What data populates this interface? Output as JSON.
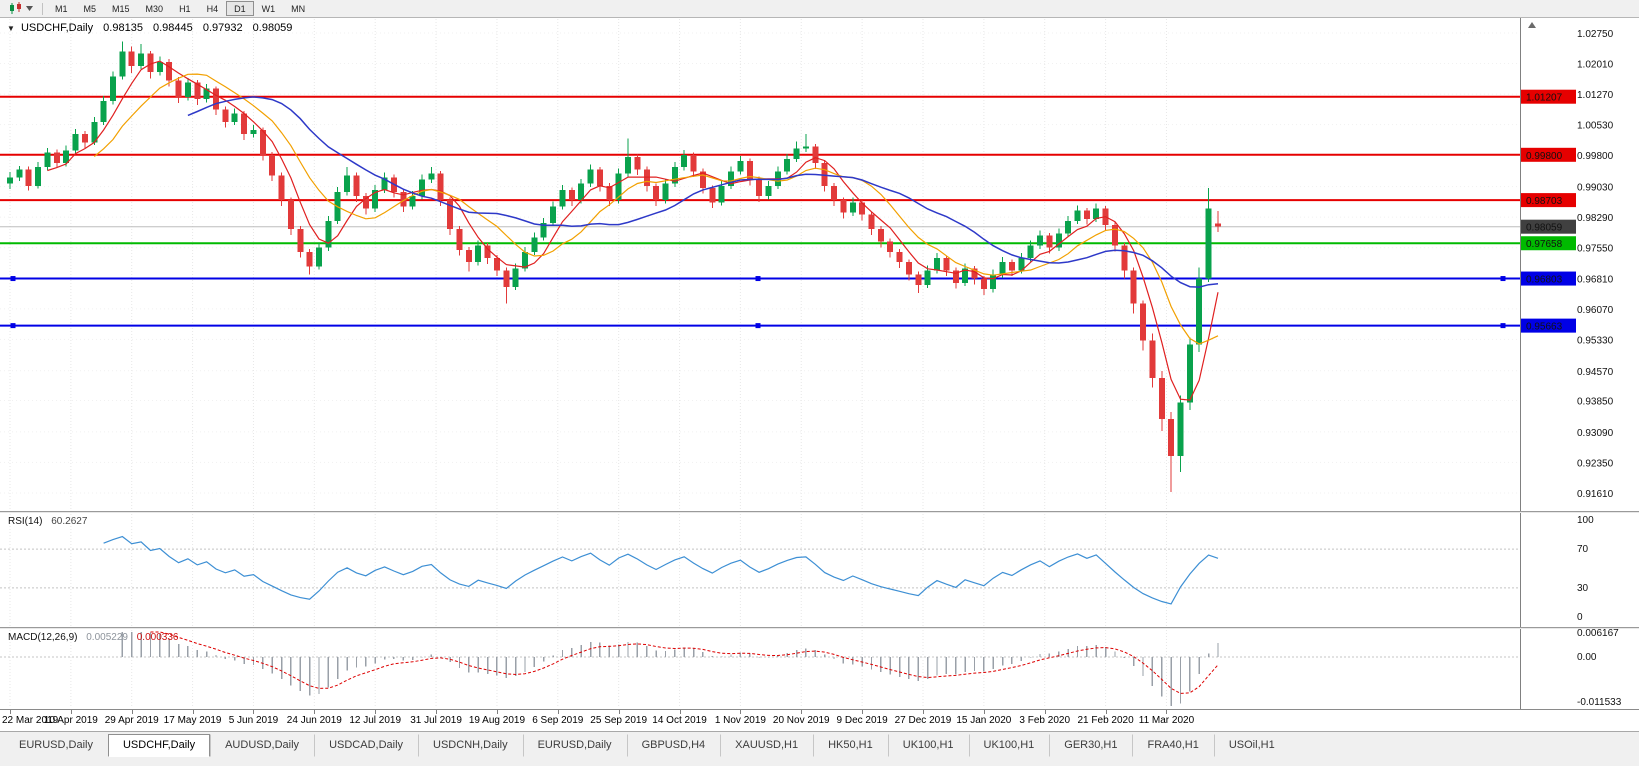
{
  "toolbar": {
    "timeframes": [
      {
        "label": "M1",
        "active": false
      },
      {
        "label": "M5",
        "active": false
      },
      {
        "label": "M15",
        "active": false
      },
      {
        "label": "M30",
        "active": false
      },
      {
        "label": "H1",
        "active": false
      },
      {
        "label": "H4",
        "active": false
      },
      {
        "label": "D1",
        "active": true
      },
      {
        "label": "W1",
        "active": false
      },
      {
        "label": "MN",
        "active": false
      }
    ]
  },
  "colors": {
    "candle_up": "#09a24c",
    "candle_down": "#e23a3a",
    "hline_red": "#e60000",
    "hline_green": "#00ba00",
    "hline_blue": "#0000e6",
    "bid_line": "#bdbdbd",
    "bid_flag": "#404040",
    "ma_fast": "#e02020",
    "ma_mid": "#f2a000",
    "ma_slow": "#2e39c8",
    "rsi_line": "#3d8fd4",
    "macd_hist": "#9aa0a8",
    "macd_signal": "#dd0000",
    "grid": "#e7e7e7"
  },
  "chart_data": {
    "type": "candlestick",
    "symbol": "USDCHF",
    "period": "Daily",
    "title": "USDCHF,Daily",
    "ohlc_display": {
      "open": "0.98135",
      "high": "0.98445",
      "low": "0.97932",
      "close": "0.98059"
    },
    "bid_price": 0.98059,
    "bid_label": "0.98059",
    "y_top": 1.0311,
    "y_bottom": 0.9118,
    "y_axis_ticks": [
      "1.02750",
      "1.02010",
      "1.01270",
      "1.00530",
      "0.99800",
      "0.99030",
      "0.98290",
      "0.97550",
      "0.96810",
      "0.96070",
      "0.95330",
      "0.94570",
      "0.93850",
      "0.93090",
      "0.92350",
      "0.91610"
    ],
    "x_axis_labels": [
      "22 Mar 2019",
      "10 Apr 2019",
      "29 Apr 2019",
      "17 May 2019",
      "5 Jun 2019",
      "24 Jun 2019",
      "12 Jul 2019",
      "31 Jul 2019",
      "19 Aug 2019",
      "6 Sep 2019",
      "25 Sep 2019",
      "14 Oct 2019",
      "1 Nov 2019",
      "20 Nov 2019",
      "9 Dec 2019",
      "27 Dec 2019",
      "15 Jan 2020",
      "3 Feb 2020",
      "21 Feb 2020",
      "11 Mar 2020"
    ],
    "candles_per_x_label": 6.5,
    "horizontal_lines": [
      {
        "price": 1.01207,
        "label": "1.01207",
        "color": "red",
        "role": "resistance",
        "selected": false
      },
      {
        "price": 0.998,
        "label": "0.99800",
        "color": "red",
        "role": "resistance",
        "selected": false
      },
      {
        "price": 0.98703,
        "label": "0.98703",
        "color": "red",
        "role": "resistance",
        "selected": false
      },
      {
        "price": 0.97658,
        "label": "0.97658",
        "color": "green",
        "role": "support",
        "selected": false
      },
      {
        "price": 0.96803,
        "label": "0.96803",
        "color": "blue",
        "role": "support",
        "selected": true
      },
      {
        "price": 0.95663,
        "label": "0.95663",
        "color": "blue",
        "role": "support",
        "selected": true
      }
    ],
    "indicators": [
      {
        "name": "RSI(14)",
        "value_display": "60.2627",
        "axis_labels": [
          "100",
          "70",
          "30",
          "0"
        ],
        "levels": [
          70,
          30
        ]
      },
      {
        "name": "MACD(12,26,9)",
        "values_display": [
          "0.005229",
          "0.000336"
        ],
        "axis_labels": [
          "0.006167",
          "0.00",
          "-0.011533"
        ]
      }
    ],
    "candles": [
      [
        0.991,
        0.9938,
        0.9897,
        0.9925
      ],
      [
        0.9925,
        0.9953,
        0.9917,
        0.9945
      ],
      [
        0.9945,
        0.9952,
        0.9893,
        0.9905
      ],
      [
        0.9905,
        0.9962,
        0.9898,
        0.995
      ],
      [
        0.995,
        0.9996,
        0.9942,
        0.9985
      ],
      [
        0.9985,
        0.9993,
        0.9948,
        0.996
      ],
      [
        0.996,
        1.0002,
        0.9952,
        0.999
      ],
      [
        0.999,
        1.0042,
        0.9983,
        1.003
      ],
      [
        1.003,
        1.0038,
        0.9996,
        1.001
      ],
      [
        1.001,
        1.0072,
        1.0004,
        1.006
      ],
      [
        1.006,
        1.0122,
        1.0052,
        1.011
      ],
      [
        1.011,
        1.0182,
        1.0102,
        1.017
      ],
      [
        1.017,
        1.0255,
        1.0162,
        1.023
      ],
      [
        1.023,
        1.0242,
        1.0178,
        1.0195
      ],
      [
        1.0195,
        1.0248,
        1.0188,
        1.0225
      ],
      [
        1.0225,
        1.0232,
        1.0165,
        1.018
      ],
      [
        1.018,
        1.0218,
        1.0172,
        1.0205
      ],
      [
        1.0205,
        1.0212,
        1.0146,
        1.016
      ],
      [
        1.016,
        1.0168,
        1.0105,
        1.012
      ],
      [
        1.012,
        1.0166,
        1.0112,
        1.0155
      ],
      [
        1.0155,
        1.0161,
        1.0101,
        1.0115
      ],
      [
        1.0115,
        1.0152,
        1.0107,
        1.014
      ],
      [
        1.014,
        1.0146,
        1.0076,
        1.009
      ],
      [
        1.009,
        1.0097,
        1.0046,
        1.006
      ],
      [
        1.006,
        1.0092,
        1.0052,
        1.008
      ],
      [
        1.008,
        1.0086,
        1.0016,
        1.003
      ],
      [
        1.003,
        1.0052,
        1.0022,
        1.004
      ],
      [
        1.004,
        1.0046,
        0.9966,
        0.998
      ],
      [
        0.998,
        0.9987,
        0.9916,
        0.993
      ],
      [
        0.993,
        0.9937,
        0.9856,
        0.987
      ],
      [
        0.987,
        0.9877,
        0.9786,
        0.98
      ],
      [
        0.98,
        0.9807,
        0.9731,
        0.9745
      ],
      [
        0.9745,
        0.9752,
        0.969,
        0.971
      ],
      [
        0.971,
        0.9767,
        0.9702,
        0.9755
      ],
      [
        0.9755,
        0.9832,
        0.9747,
        0.982
      ],
      [
        0.982,
        0.9902,
        0.9812,
        0.989
      ],
      [
        0.989,
        0.995,
        0.9882,
        0.993
      ],
      [
        0.993,
        0.9937,
        0.9866,
        0.988
      ],
      [
        0.988,
        0.9887,
        0.9836,
        0.985
      ],
      [
        0.985,
        0.9907,
        0.9842,
        0.9895
      ],
      [
        0.9895,
        0.9937,
        0.9887,
        0.9925
      ],
      [
        0.9925,
        0.9932,
        0.9876,
        0.989
      ],
      [
        0.989,
        0.9897,
        0.9841,
        0.9855
      ],
      [
        0.9855,
        0.9892,
        0.9847,
        0.988
      ],
      [
        0.988,
        0.9932,
        0.9872,
        0.992
      ],
      [
        0.992,
        0.995,
        0.9912,
        0.9935
      ],
      [
        0.9935,
        0.9941,
        0.9856,
        0.987
      ],
      [
        0.987,
        0.9877,
        0.9786,
        0.98
      ],
      [
        0.98,
        0.9807,
        0.9736,
        0.975
      ],
      [
        0.975,
        0.9757,
        0.9697,
        0.972
      ],
      [
        0.972,
        0.9772,
        0.9712,
        0.976
      ],
      [
        0.976,
        0.9766,
        0.9716,
        0.973
      ],
      [
        0.973,
        0.9737,
        0.9686,
        0.97
      ],
      [
        0.97,
        0.9707,
        0.962,
        0.966
      ],
      [
        0.966,
        0.9717,
        0.9652,
        0.9705
      ],
      [
        0.9705,
        0.9757,
        0.9697,
        0.9745
      ],
      [
        0.9745,
        0.9792,
        0.9737,
        0.978
      ],
      [
        0.978,
        0.9827,
        0.9772,
        0.9815
      ],
      [
        0.9815,
        0.9867,
        0.9807,
        0.9855
      ],
      [
        0.9855,
        0.9907,
        0.9847,
        0.9895
      ],
      [
        0.9895,
        0.9901,
        0.9856,
        0.987
      ],
      [
        0.987,
        0.9922,
        0.9862,
        0.991
      ],
      [
        0.991,
        0.9957,
        0.9902,
        0.9945
      ],
      [
        0.9945,
        0.9951,
        0.9891,
        0.9905
      ],
      [
        0.9905,
        0.9912,
        0.9856,
        0.987
      ],
      [
        0.987,
        0.9947,
        0.9862,
        0.9935
      ],
      [
        0.9935,
        1.002,
        0.9927,
        0.9975
      ],
      [
        0.9975,
        0.9981,
        0.9931,
        0.9945
      ],
      [
        0.9945,
        0.9952,
        0.9891,
        0.9905
      ],
      [
        0.9905,
        0.9911,
        0.9856,
        0.987
      ],
      [
        0.987,
        0.9922,
        0.9862,
        0.991
      ],
      [
        0.991,
        0.9962,
        0.9902,
        0.995
      ],
      [
        0.995,
        0.9992,
        0.9942,
        0.998
      ],
      [
        0.998,
        0.9986,
        0.9926,
        0.994
      ],
      [
        0.994,
        0.9947,
        0.9886,
        0.99
      ],
      [
        0.99,
        0.9906,
        0.9851,
        0.9865
      ],
      [
        0.9865,
        0.9917,
        0.9857,
        0.9905
      ],
      [
        0.9905,
        0.9952,
        0.9897,
        0.994
      ],
      [
        0.994,
        0.9977,
        0.9932,
        0.9965
      ],
      [
        0.9965,
        0.9971,
        0.9906,
        0.992
      ],
      [
        0.992,
        0.9927,
        0.9866,
        0.988
      ],
      [
        0.988,
        0.9917,
        0.9872,
        0.9905
      ],
      [
        0.9905,
        0.9952,
        0.9897,
        0.994
      ],
      [
        0.994,
        0.9982,
        0.9932,
        0.997
      ],
      [
        0.997,
        1.0012,
        0.9962,
        0.9995
      ],
      [
        0.9995,
        1.003,
        0.9987,
        1.0
      ],
      [
        1.0,
        1.0006,
        0.9946,
        0.996
      ],
      [
        0.996,
        0.9967,
        0.9891,
        0.9905
      ],
      [
        0.9905,
        0.9912,
        0.9856,
        0.987
      ],
      [
        0.987,
        0.9877,
        0.9826,
        0.984
      ],
      [
        0.984,
        0.9877,
        0.9832,
        0.9865
      ],
      [
        0.9865,
        0.9871,
        0.9821,
        0.9835
      ],
      [
        0.9835,
        0.9842,
        0.9786,
        0.98
      ],
      [
        0.98,
        0.9807,
        0.9756,
        0.977
      ],
      [
        0.977,
        0.9777,
        0.9731,
        0.9745
      ],
      [
        0.9745,
        0.9752,
        0.9706,
        0.972
      ],
      [
        0.972,
        0.9727,
        0.9676,
        0.969
      ],
      [
        0.969,
        0.9697,
        0.9645,
        0.9665
      ],
      [
        0.9665,
        0.9712,
        0.9657,
        0.97
      ],
      [
        0.97,
        0.9742,
        0.9692,
        0.973
      ],
      [
        0.973,
        0.9736,
        0.9686,
        0.97
      ],
      [
        0.97,
        0.9707,
        0.9656,
        0.967
      ],
      [
        0.967,
        0.9717,
        0.9662,
        0.9705
      ],
      [
        0.9705,
        0.9711,
        0.9666,
        0.968
      ],
      [
        0.968,
        0.9687,
        0.964,
        0.9655
      ],
      [
        0.9655,
        0.9702,
        0.9647,
        0.969
      ],
      [
        0.969,
        0.9732,
        0.9682,
        0.972
      ],
      [
        0.972,
        0.9726,
        0.9686,
        0.97
      ],
      [
        0.97,
        0.9742,
        0.9692,
        0.973
      ],
      [
        0.973,
        0.9772,
        0.9722,
        0.976
      ],
      [
        0.976,
        0.9797,
        0.9752,
        0.9785
      ],
      [
        0.9785,
        0.9791,
        0.9741,
        0.9755
      ],
      [
        0.9755,
        0.9802,
        0.9747,
        0.979
      ],
      [
        0.979,
        0.9832,
        0.9782,
        0.982
      ],
      [
        0.982,
        0.9857,
        0.9812,
        0.9845
      ],
      [
        0.9845,
        0.9851,
        0.9811,
        0.9825
      ],
      [
        0.9825,
        0.9862,
        0.9817,
        0.985
      ],
      [
        0.985,
        0.9856,
        0.9796,
        0.981
      ],
      [
        0.981,
        0.9817,
        0.9746,
        0.976
      ],
      [
        0.976,
        0.9767,
        0.9681,
        0.97
      ],
      [
        0.97,
        0.9707,
        0.9596,
        0.962
      ],
      [
        0.962,
        0.9627,
        0.9506,
        0.953
      ],
      [
        0.953,
        0.9547,
        0.9416,
        0.944
      ],
      [
        0.944,
        0.9457,
        0.9311,
        0.934
      ],
      [
        0.934,
        0.9357,
        0.9163,
        0.925
      ],
      [
        0.925,
        0.9397,
        0.9212,
        0.938
      ],
      [
        0.938,
        0.9537,
        0.9362,
        0.952
      ],
      [
        0.952,
        0.9707,
        0.9502,
        0.968
      ],
      [
        0.968,
        0.99,
        0.9672,
        0.985
      ],
      [
        0.98135,
        0.98445,
        0.97932,
        0.98059
      ]
    ]
  },
  "tabs": [
    {
      "label": "EURUSD,Daily",
      "active": false
    },
    {
      "label": "USDCHF,Daily",
      "active": true
    },
    {
      "label": "AUDUSD,Daily",
      "active": false
    },
    {
      "label": "USDCAD,Daily",
      "active": false
    },
    {
      "label": "USDCNH,Daily",
      "active": false
    },
    {
      "label": "EURUSD,Daily",
      "active": false
    },
    {
      "label": "GBPUSD,H4",
      "active": false
    },
    {
      "label": "XAUUSD,H1",
      "active": false
    },
    {
      "label": "HK50,H1",
      "active": false
    },
    {
      "label": "UK100,H1",
      "active": false
    },
    {
      "label": "UK100,H1",
      "active": false
    },
    {
      "label": "GER30,H1",
      "active": false
    },
    {
      "label": "FRA40,H1",
      "active": false
    },
    {
      "label": "USOil,H1",
      "active": false
    }
  ]
}
